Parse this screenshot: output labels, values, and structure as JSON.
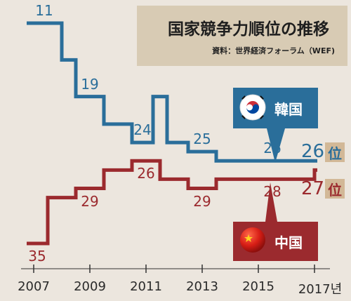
{
  "header": {
    "title": "国家競争力順位の推移",
    "source": "資料：世界経済フォーラム（WEF)"
  },
  "chart_data": {
    "type": "line",
    "title": "国家競争力順位の推移",
    "step": true,
    "y_inverted": true,
    "ylim": [
      10,
      36
    ],
    "x_ticks": [
      "2007",
      "2009",
      "2011",
      "2013",
      "2015",
      "2017년"
    ],
    "series": [
      {
        "name": "韓国",
        "color": "#2a6e9a",
        "points": [
          {
            "x": 2006.75,
            "y": 11,
            "label": "11"
          },
          {
            "x": 2008.0,
            "y": 15
          },
          {
            "x": 2008.5,
            "y": 19,
            "label": "19"
          },
          {
            "x": 2009.5,
            "y": 22
          },
          {
            "x": 2010.5,
            "y": 24,
            "label": "24"
          },
          {
            "x": 2011.25,
            "y": 19
          },
          {
            "x": 2011.75,
            "y": 24
          },
          {
            "x": 2012.5,
            "y": 25,
            "label": "25"
          },
          {
            "x": 2013.5,
            "y": 26
          },
          {
            "x": 2015.0,
            "y": 26,
            "label": "26"
          },
          {
            "x": 2016.0,
            "y": 26
          },
          {
            "x": 2017.0,
            "y": 26,
            "label": "26"
          }
        ]
      },
      {
        "name": "中国",
        "color": "#9b2a2e",
        "points": [
          {
            "x": 2006.75,
            "y": 35,
            "label": "35"
          },
          {
            "x": 2007.5,
            "y": 30
          },
          {
            "x": 2008.5,
            "y": 29,
            "label": "29"
          },
          {
            "x": 2009.5,
            "y": 27
          },
          {
            "x": 2010.5,
            "y": 26,
            "label": "26"
          },
          {
            "x": 2011.5,
            "y": 28
          },
          {
            "x": 2012.5,
            "y": 29,
            "label": "29"
          },
          {
            "x": 2013.5,
            "y": 28
          },
          {
            "x": 2015.0,
            "y": 28,
            "label": "28"
          },
          {
            "x": 2016.0,
            "y": 28
          },
          {
            "x": 2017.0,
            "y": 27,
            "label": "27"
          }
        ]
      }
    ],
    "end_labels": {
      "kr_value": "26",
      "cn_value": "27",
      "unit": "位"
    },
    "callouts": {
      "kr": "韓国",
      "cn": "中国"
    }
  }
}
